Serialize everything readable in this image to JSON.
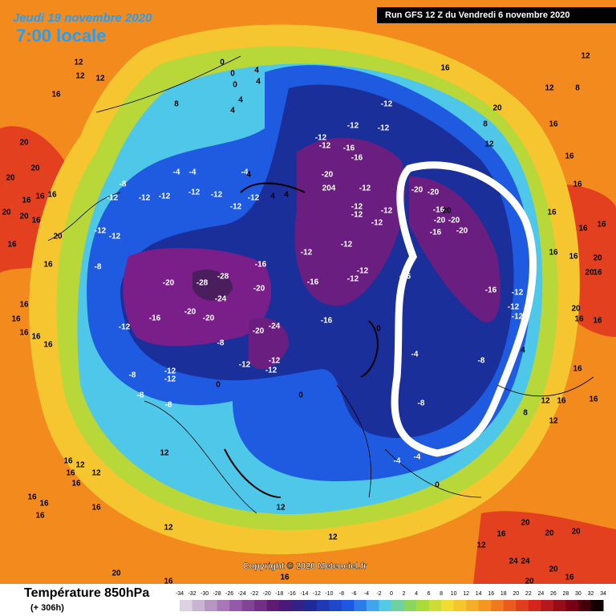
{
  "header": {
    "date": "Jeudi 19 novembre 2020",
    "time": "7:00 locale",
    "run": "Run GFS 12 Z du Vendredi 6 novembre 2020"
  },
  "copyright": "Copyright © 2020 Meteociel.fr",
  "legend": {
    "title": "Température 850hPa",
    "subtitle": "(+ 306h)",
    "values": [
      "-34",
      "-32",
      "-30",
      "-28",
      "-26",
      "-24",
      "-22",
      "-20",
      "-18",
      "-16",
      "-14",
      "-12",
      "-10",
      "-8",
      "-6",
      "-4",
      "-2",
      "0",
      "2",
      "4",
      "6",
      "8",
      "10",
      "12",
      "14",
      "16",
      "18",
      "20",
      "22",
      "24",
      "26",
      "28",
      "30",
      "32",
      "34"
    ]
  },
  "contour_labels": [
    "12",
    "12",
    "12",
    "16",
    "8",
    "0",
    "0",
    "0",
    "4",
    "4",
    "4",
    "4",
    "-4",
    "-4",
    "-4",
    "4",
    "-8",
    "-12",
    "-12",
    "-12",
    "-12",
    "-12",
    "-12",
    "-12",
    "4",
    "4",
    "-12",
    "-12",
    "-8",
    "-20",
    "-28",
    "-28",
    "-24",
    "-16",
    "-20",
    "-20",
    "-12",
    "-8",
    "-16",
    "-20",
    "-20",
    "-24",
    "-12",
    "-12",
    "-12",
    "-12",
    "-12",
    "-8",
    "-8",
    "-8",
    "0",
    "0",
    "-12",
    "-16",
    "-16",
    "-12",
    "-12",
    "-12",
    "-12",
    "-12",
    "-12",
    "-12",
    "-12",
    "-16",
    "-16",
    "-20",
    "204",
    "-12",
    "-12",
    "-12",
    "-12",
    "-12",
    "-20",
    "-20",
    "-16",
    "20",
    "-20",
    "-20",
    "-16",
    "-20",
    "-16",
    "-16",
    "-12",
    "-12",
    "-12",
    "-8",
    "-4",
    "-8",
    "0",
    "4",
    "12",
    "8",
    "-4",
    "-4",
    "0",
    "20",
    "20",
    "20",
    "16",
    "16",
    "16",
    "20",
    "20",
    "16",
    "20",
    "16",
    "16",
    "16",
    "16",
    "16",
    "16",
    "16",
    "16",
    "12",
    "16",
    "16",
    "16",
    "16",
    "16",
    "12",
    "16",
    "12",
    "12",
    "20",
    "16",
    "12",
    "16",
    "12",
    "12",
    "16",
    "20",
    "20",
    "20",
    "24",
    "24",
    "20",
    "16",
    "20",
    "16",
    "16",
    "16",
    "16",
    "16",
    "16",
    "16",
    "20",
    "16",
    "16",
    "16",
    "16",
    "16",
    "12",
    "12",
    "8",
    "16",
    "12",
    "8",
    "20",
    "20",
    "20",
    "16",
    "16",
    "12"
  ]
}
